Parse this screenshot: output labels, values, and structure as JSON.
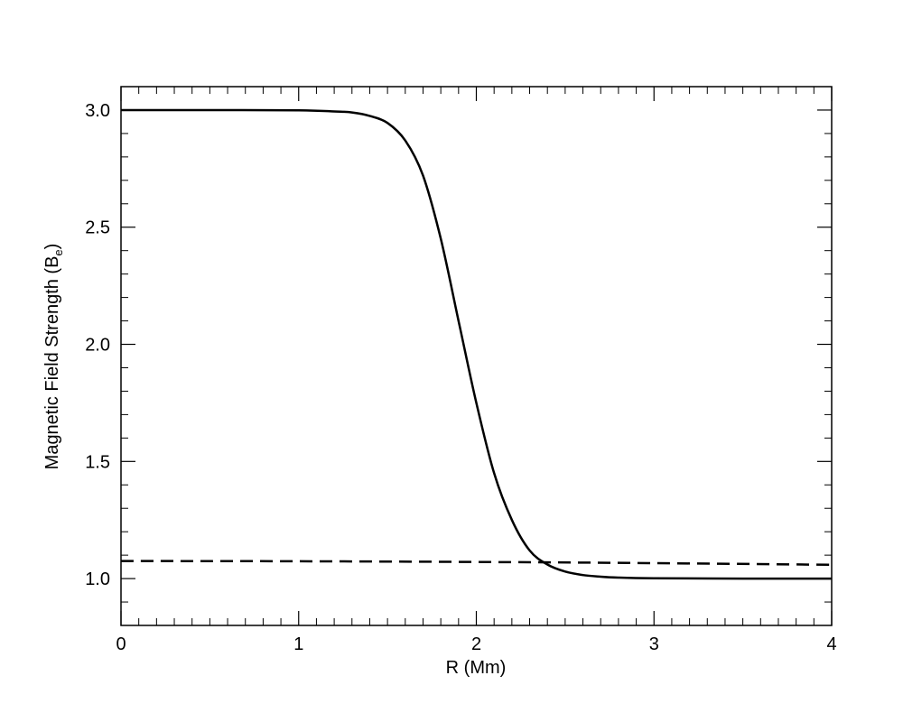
{
  "chart_data": {
    "type": "line",
    "xlabel": "R (Mm)",
    "ylabel_main": "Magnetic Field Strength (B",
    "ylabel_sub": "e",
    "ylabel_close": ")",
    "xlim": [
      0,
      4
    ],
    "ylim": [
      0.8,
      3.1
    ],
    "x_ticks": [
      "0",
      "1",
      "2",
      "3",
      "4"
    ],
    "y_ticks": [
      "1.0",
      "1.5",
      "2.0",
      "2.5",
      "3.0"
    ],
    "x_tick_values": [
      0,
      1,
      2,
      3,
      4
    ],
    "y_tick_values": [
      1.0,
      1.5,
      2.0,
      2.5,
      3.0
    ],
    "grid": false,
    "series": [
      {
        "style": "solid",
        "x": [
          0,
          0.5,
          1.0,
          1.2,
          1.3,
          1.4,
          1.5,
          1.6,
          1.7,
          1.8,
          1.9,
          2.0,
          2.1,
          2.2,
          2.3,
          2.4,
          2.5,
          2.6,
          2.7,
          2.8,
          3.0,
          3.5,
          4.0
        ],
        "y": [
          3.0,
          3.0,
          2.999,
          2.994,
          2.99,
          2.975,
          2.945,
          2.87,
          2.72,
          2.45,
          2.1,
          1.75,
          1.45,
          1.25,
          1.12,
          1.06,
          1.03,
          1.015,
          1.008,
          1.004,
          1.001,
          1.0,
          1.0
        ]
      },
      {
        "style": "dashed",
        "x": [
          0,
          1.0,
          2.0,
          3.0,
          4.0
        ],
        "y": [
          1.075,
          1.074,
          1.071,
          1.066,
          1.059
        ]
      }
    ]
  }
}
